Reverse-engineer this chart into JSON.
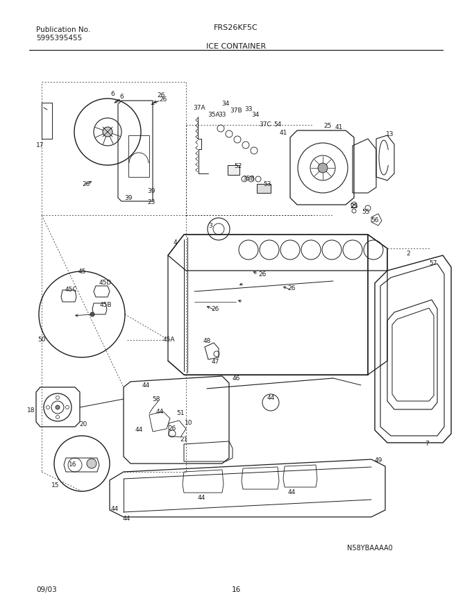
{
  "title_left_line1": "Publication No.",
  "title_left_line2": "5995395455",
  "title_center": "FRS26KF5C",
  "section_title": "ICE CONTAINER",
  "image_label": "N58YBAAAA0",
  "footer_left": "09/03",
  "footer_center": "16",
  "background_color": "#ffffff",
  "line_color": "#1a1a1a",
  "text_color": "#1a1a1a",
  "fig_width": 6.8,
  "fig_height": 8.69,
  "dpi": 100
}
